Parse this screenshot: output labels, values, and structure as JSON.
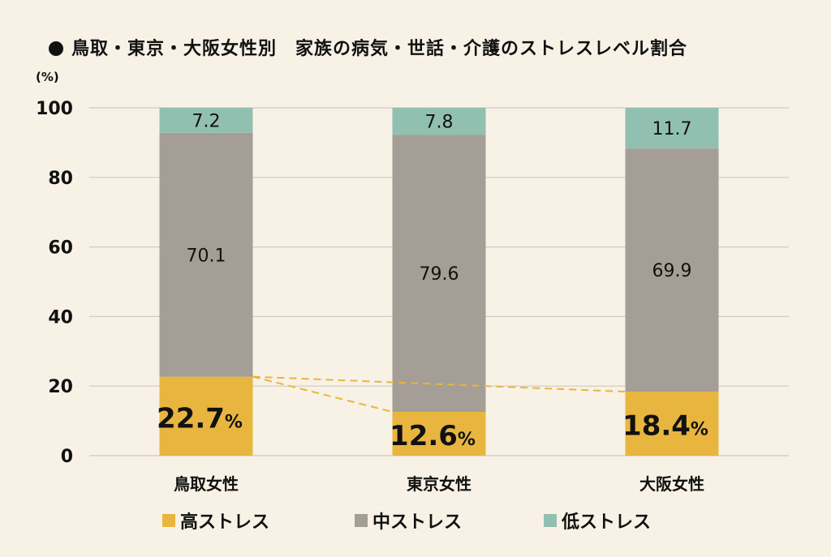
{
  "title": "鳥取・東京・大阪女性別　家族の病気・世話・介護のストレスレベル割合",
  "unit_label": "(%)",
  "legend": {
    "high": "高ストレス",
    "mid": "中ストレス",
    "low": "低ストレス"
  },
  "colors": {
    "high": "#e8b63e",
    "mid": "#a59e96",
    "low": "#92c0b0",
    "grid": "#cfcac3",
    "dash": "#e8b63e",
    "background": "#f7f1e6"
  },
  "chart_data": {
    "type": "bar",
    "stacked": true,
    "categories": [
      "鳥取女性",
      "東京女性",
      "大阪女性"
    ],
    "series": [
      {
        "name": "高ストレス",
        "values": [
          22.7,
          12.6,
          18.4
        ],
        "labels": [
          "22.7",
          "12.6",
          "18.4"
        ],
        "suffix": "%"
      },
      {
        "name": "中ストレス",
        "values": [
          70.1,
          79.6,
          69.9
        ],
        "labels": [
          "70.1",
          "79.6",
          "69.9"
        ]
      },
      {
        "name": "低ストレス",
        "values": [
          7.2,
          7.8,
          11.7
        ],
        "labels": [
          "7.2",
          "7.8",
          "11.7"
        ]
      }
    ],
    "yticks": [
      "0",
      "20",
      "40",
      "60",
      "80",
      "100"
    ],
    "ylim": [
      0,
      100
    ],
    "grid": true,
    "legend_position": "bottom",
    "annotation": "dashed connector lines between the tops of the 高ストレス segments"
  }
}
